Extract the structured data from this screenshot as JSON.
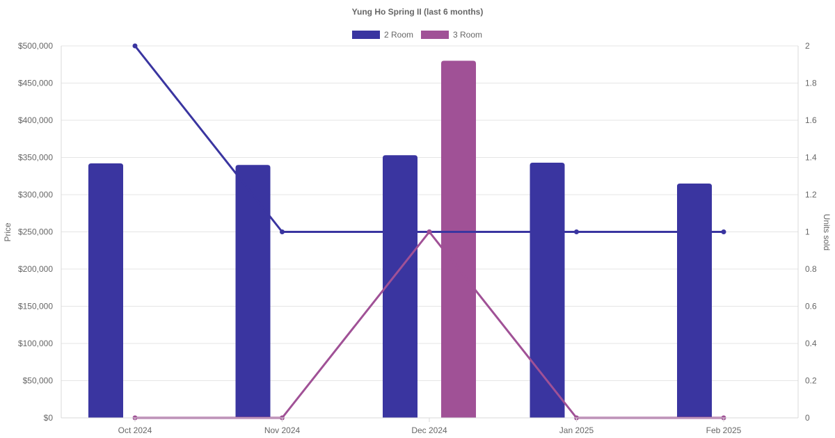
{
  "chart_data": {
    "type": "bar",
    "title": "Yung Ho Spring II (last 6 months)",
    "categories": [
      "Oct 2024",
      "Nov 2024",
      "Dec 2024",
      "Jan 2025",
      "Feb 2025"
    ],
    "legend": {
      "position": "top",
      "entries": [
        "2 Room",
        "3 Room"
      ]
    },
    "y_left": {
      "label": "Price",
      "ylim": [
        0,
        500000
      ],
      "ticks": [
        0,
        50000,
        100000,
        150000,
        200000,
        250000,
        300000,
        350000,
        400000,
        450000,
        500000
      ],
      "tick_labels": [
        "$0",
        "$50,000",
        "$100,000",
        "$150,000",
        "$200,000",
        "$250,000",
        "$300,000",
        "$350,000",
        "$400,000",
        "$450,000",
        "$500,000"
      ]
    },
    "y_right": {
      "label": "Units sold",
      "ylim": [
        0,
        2
      ],
      "ticks": [
        0,
        0.2,
        0.4,
        0.6,
        0.8,
        1,
        1.2,
        1.4,
        1.6,
        1.8,
        2
      ],
      "tick_labels": [
        "0",
        "0.2",
        "0.4",
        "0.6",
        "0.8",
        "1",
        "1.2",
        "1.4",
        "1.6",
        "1.8",
        "2"
      ]
    },
    "grid": true,
    "bar_series": [
      {
        "name": "2 Room",
        "color": "#3a35a0",
        "values": [
          342000,
          340000,
          353000,
          343000,
          315000
        ]
      },
      {
        "name": "3 Room",
        "color": "#a05196",
        "values": [
          null,
          null,
          480000,
          null,
          null
        ]
      }
    ],
    "line_series": [
      {
        "name": "2 Room",
        "color": "#3a35a0",
        "values": [
          2,
          1,
          1,
          1,
          1
        ]
      },
      {
        "name": "3 Room",
        "color": "#a05196",
        "values": [
          0,
          0,
          1,
          0,
          0
        ]
      }
    ]
  }
}
